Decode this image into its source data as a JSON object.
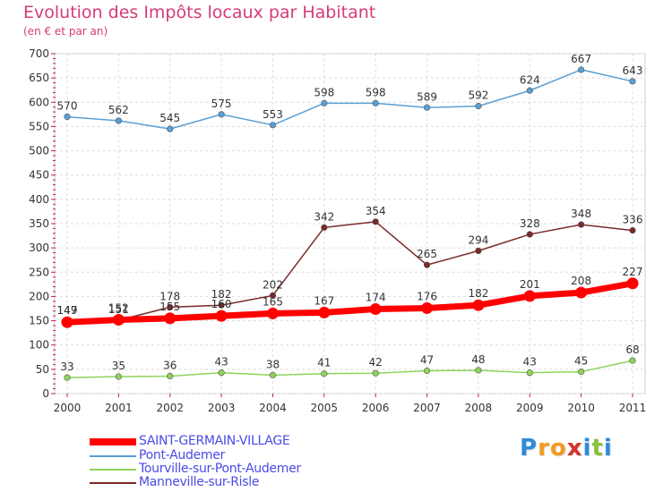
{
  "chart_data": {
    "type": "line",
    "title": "Evolution des Impôts locaux par Habitant",
    "subtitle": "(en € et par an)",
    "x": [
      "2000",
      "2001",
      "2002",
      "2003",
      "2004",
      "2005",
      "2006",
      "2007",
      "2008",
      "2009",
      "2010",
      "2011"
    ],
    "ylim": [
      0,
      700
    ],
    "y_ticks": [
      "0",
      "50",
      "100",
      "150",
      "200",
      "250",
      "300",
      "350",
      "400",
      "450",
      "500",
      "550",
      "600",
      "650",
      "700"
    ],
    "grid": true,
    "legend_position": "bottom-left",
    "series": [
      {
        "name": "SAINT-GERMAIN-VILLAGE",
        "color": "#ff0000",
        "values": [
          147,
          152,
          155,
          160,
          165,
          167,
          174,
          176,
          182,
          201,
          208,
          227
        ]
      },
      {
        "name": "Pont-Audemer",
        "color": "#5a9fd4",
        "values": [
          570,
          562,
          545,
          575,
          553,
          598,
          598,
          589,
          592,
          624,
          667,
          643
        ]
      },
      {
        "name": "Tourville-sur-Pont-Audemer",
        "color": "#8fd35a",
        "values": [
          33,
          35,
          36,
          43,
          38,
          41,
          42,
          47,
          48,
          43,
          45,
          68
        ]
      },
      {
        "name": "Manneville-sur-Risle",
        "color": "#7a2a2a",
        "values": [
          149,
          151,
          178,
          182,
          202,
          342,
          354,
          265,
          294,
          328,
          348,
          336
        ]
      }
    ]
  },
  "brand": {
    "letters": [
      "P",
      "r",
      "o",
      "x",
      "i",
      "t",
      "i"
    ],
    "colors": [
      "#2e8bd8",
      "#f29a1f",
      "#f29a1f",
      "#d6332e",
      "#2e8bd8",
      "#8ac13d",
      "#2e8bd8"
    ]
  }
}
